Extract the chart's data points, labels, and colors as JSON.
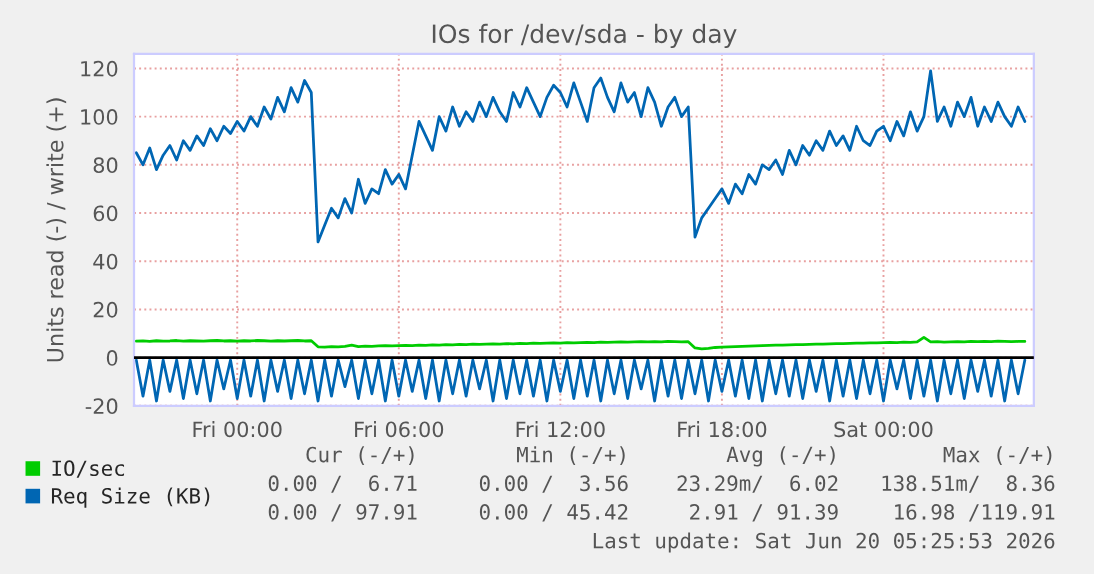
{
  "chart_data": {
    "type": "line",
    "title": "IOs for /dev/sda - by day",
    "ylabel": "Units read (-) / write (+)",
    "x": [
      "2026-06-18T20:15",
      "2026-06-18T20:30",
      "2026-06-18T20:45",
      "2026-06-18T21:00",
      "2026-06-18T21:15",
      "2026-06-18T21:30",
      "2026-06-18T21:45",
      "2026-06-18T22:00",
      "2026-06-18T22:15",
      "2026-06-18T22:30",
      "2026-06-18T22:45",
      "2026-06-18T23:00",
      "2026-06-18T23:15",
      "2026-06-18T23:30",
      "2026-06-18T23:45",
      "2026-06-19T00:00",
      "2026-06-19T00:15",
      "2026-06-19T00:30",
      "2026-06-19T00:45",
      "2026-06-19T01:00",
      "2026-06-19T01:15",
      "2026-06-19T01:30",
      "2026-06-19T01:45",
      "2026-06-19T02:00",
      "2026-06-19T02:15",
      "2026-06-19T02:30",
      "2026-06-19T02:45",
      "2026-06-19T03:00",
      "2026-06-19T03:15",
      "2026-06-19T03:30",
      "2026-06-19T03:45",
      "2026-06-19T04:00",
      "2026-06-19T04:15",
      "2026-06-19T04:30",
      "2026-06-19T04:45",
      "2026-06-19T05:00",
      "2026-06-19T05:15",
      "2026-06-19T05:30",
      "2026-06-19T05:45",
      "2026-06-19T06:00",
      "2026-06-19T06:15",
      "2026-06-19T06:30",
      "2026-06-19T06:45",
      "2026-06-19T07:00",
      "2026-06-19T07:15",
      "2026-06-19T07:30",
      "2026-06-19T07:45",
      "2026-06-19T08:00",
      "2026-06-19T08:15",
      "2026-06-19T08:30",
      "2026-06-19T08:45",
      "2026-06-19T09:00",
      "2026-06-19T09:15",
      "2026-06-19T09:30",
      "2026-06-19T09:45",
      "2026-06-19T10:00",
      "2026-06-19T10:15",
      "2026-06-19T10:30",
      "2026-06-19T10:45",
      "2026-06-19T11:00",
      "2026-06-19T11:15",
      "2026-06-19T11:30",
      "2026-06-19T11:45",
      "2026-06-19T12:00",
      "2026-06-19T12:15",
      "2026-06-19T12:30",
      "2026-06-19T12:45",
      "2026-06-19T13:00",
      "2026-06-19T13:15",
      "2026-06-19T13:30",
      "2026-06-19T13:45",
      "2026-06-19T14:00",
      "2026-06-19T14:15",
      "2026-06-19T14:30",
      "2026-06-19T14:45",
      "2026-06-19T15:00",
      "2026-06-19T15:15",
      "2026-06-19T15:30",
      "2026-06-19T15:45",
      "2026-06-19T16:00",
      "2026-06-19T16:15",
      "2026-06-19T16:30",
      "2026-06-19T16:45",
      "2026-06-19T17:00",
      "2026-06-19T17:15",
      "2026-06-19T17:30",
      "2026-06-19T17:45",
      "2026-06-19T18:00",
      "2026-06-19T18:15",
      "2026-06-19T18:30",
      "2026-06-19T18:45",
      "2026-06-19T19:00",
      "2026-06-19T19:15",
      "2026-06-19T19:30",
      "2026-06-19T19:45",
      "2026-06-19T20:00",
      "2026-06-19T20:15",
      "2026-06-19T20:30",
      "2026-06-19T20:45",
      "2026-06-19T21:00",
      "2026-06-19T21:15",
      "2026-06-19T21:30",
      "2026-06-19T21:45",
      "2026-06-19T22:00",
      "2026-06-19T22:15",
      "2026-06-19T22:30",
      "2026-06-19T22:45",
      "2026-06-19T23:00",
      "2026-06-19T23:15",
      "2026-06-19T23:30",
      "2026-06-19T23:45",
      "2026-06-20T00:00",
      "2026-06-20T00:15",
      "2026-06-20T00:30",
      "2026-06-20T00:45",
      "2026-06-20T01:00",
      "2026-06-20T01:15",
      "2026-06-20T01:30",
      "2026-06-20T01:45",
      "2026-06-20T02:00",
      "2026-06-20T02:15",
      "2026-06-20T02:30",
      "2026-06-20T02:45",
      "2026-06-20T03:00",
      "2026-06-20T03:15",
      "2026-06-20T03:30",
      "2026-06-20T03:45",
      "2026-06-20T04:00",
      "2026-06-20T04:15",
      "2026-06-20T04:30",
      "2026-06-20T04:45",
      "2026-06-20T05:00",
      "2026-06-20T05:15"
    ],
    "series": [
      {
        "name": "IO/sec",
        "color": "#00cc00",
        "values": [
          6.8,
          6.9,
          6.7,
          7.0,
          6.8,
          6.9,
          7.1,
          6.8,
          7.0,
          6.9,
          6.8,
          7.0,
          7.1,
          6.9,
          7.0,
          6.8,
          7.0,
          6.9,
          7.1,
          7.0,
          6.8,
          7.0,
          6.9,
          7.0,
          7.1,
          6.9,
          7.0,
          4.5,
          4.4,
          4.6,
          4.5,
          4.7,
          5.2,
          4.6,
          4.8,
          4.7,
          4.9,
          5.0,
          4.9,
          5.0,
          5.1,
          5.0,
          5.2,
          5.1,
          5.3,
          5.2,
          5.4,
          5.3,
          5.5,
          5.4,
          5.6,
          5.5,
          5.6,
          5.7,
          5.6,
          5.8,
          5.7,
          5.9,
          5.8,
          6.0,
          5.9,
          6.0,
          6.1,
          6.0,
          6.2,
          6.1,
          6.2,
          6.3,
          6.2,
          6.4,
          6.3,
          6.4,
          6.5,
          6.4,
          6.5,
          6.6,
          6.5,
          6.6,
          6.5,
          6.7,
          6.6,
          6.5,
          6.6,
          4.0,
          3.6,
          3.8,
          4.2,
          4.4,
          4.5,
          4.6,
          4.7,
          4.8,
          4.9,
          5.0,
          5.1,
          5.2,
          5.2,
          5.3,
          5.4,
          5.4,
          5.5,
          5.6,
          5.6,
          5.7,
          5.8,
          5.8,
          5.9,
          6.0,
          6.0,
          6.1,
          6.1,
          6.2,
          6.3,
          6.2,
          6.4,
          6.3,
          6.5,
          8.4,
          6.5,
          6.6,
          6.4,
          6.5,
          6.6,
          6.5,
          6.7,
          6.6,
          6.7,
          6.6,
          6.8,
          6.7,
          6.6,
          6.7,
          6.7
        ]
      },
      {
        "name": "Req Size (KB)",
        "color": "#0066b3",
        "values": [
          85,
          80,
          87,
          78,
          84,
          88,
          82,
          90,
          86,
          92,
          88,
          95,
          90,
          96,
          93,
          98,
          94,
          100,
          96,
          104,
          99,
          108,
          102,
          112,
          106,
          115,
          110,
          48,
          55,
          62,
          58,
          66,
          60,
          74,
          64,
          70,
          68,
          78,
          72,
          76,
          70,
          84,
          98,
          92,
          86,
          100,
          94,
          104,
          96,
          102,
          98,
          106,
          100,
          108,
          102,
          98,
          110,
          104,
          112,
          106,
          100,
          108,
          113,
          110,
          104,
          114,
          106,
          98,
          112,
          116,
          108,
          102,
          114,
          106,
          110,
          100,
          112,
          106,
          96,
          104,
          108,
          100,
          104,
          50,
          58,
          62,
          66,
          70,
          64,
          72,
          68,
          76,
          72,
          80,
          78,
          82,
          76,
          86,
          80,
          88,
          84,
          90,
          86,
          94,
          88,
          92,
          86,
          96,
          90,
          88,
          94,
          96,
          90,
          98,
          92,
          102,
          94,
          100,
          119,
          98,
          104,
          96,
          106,
          100,
          108,
          96,
          104,
          98,
          106,
          100,
          96,
          104,
          98
        ]
      },
      {
        "color": "#0066b3",
        "values": [
          -1,
          -16,
          -1,
          -18,
          -1,
          -14,
          -1,
          -17,
          -1,
          -15,
          -1,
          -18,
          -1,
          -13,
          -1,
          -17,
          -1,
          -16,
          -1,
          -18,
          -1,
          -14,
          -1,
          -17,
          -1,
          -15,
          -1,
          -18,
          -1,
          -16,
          -1,
          -12,
          -1,
          -17,
          -1,
          -15,
          -1,
          -18,
          -1,
          -16,
          -1,
          -14,
          -1,
          -17,
          -1,
          -18,
          -1,
          -15,
          -1,
          -16,
          -1,
          -13,
          -1,
          -18,
          -1,
          -17,
          -1,
          -15,
          -1,
          -16,
          -1,
          -18,
          -1,
          -14,
          -1,
          -17,
          -1,
          -16,
          -1,
          -18,
          -1,
          -15,
          -1,
          -17,
          -1,
          -13,
          -1,
          -18,
          -1,
          -16,
          -1,
          -17,
          -1,
          -15,
          -1,
          -18,
          -1,
          -14,
          -1,
          -16,
          -1,
          -17,
          -1,
          -18,
          -1,
          -15,
          -1,
          -16,
          -1,
          -17,
          -1,
          -14,
          -1,
          -18,
          -1,
          -16,
          -1,
          -17,
          -1,
          -15,
          -1,
          -18,
          -1,
          -13,
          -1,
          -17,
          -1,
          -16,
          -1,
          -18,
          -1,
          -15,
          -1,
          -17,
          -1,
          -14,
          -1,
          -16,
          -1,
          -18,
          -1,
          -15,
          -1
        ]
      }
    ],
    "xlim": [
      "2026-06-18T20:10",
      "2026-06-20T05:35"
    ],
    "xticks": [
      {
        "value": "2026-06-19T00:00",
        "label": "Fri 00:00"
      },
      {
        "value": "2026-06-19T06:00",
        "label": "Fri 06:00"
      },
      {
        "value": "2026-06-19T12:00",
        "label": "Fri 12:00"
      },
      {
        "value": "2026-06-19T18:00",
        "label": "Fri 18:00"
      },
      {
        "value": "2026-06-20T00:00",
        "label": "Sat 00:00"
      }
    ],
    "ylim": [
      -20,
      126
    ],
    "yticks": [
      -20,
      0,
      20,
      40,
      60,
      80,
      100,
      120
    ],
    "ref_lines": [
      {
        "axis": "y",
        "value": 0,
        "color": "#000000"
      }
    ],
    "grid": true,
    "legend": "bottom left",
    "marker": "none",
    "line_style": "solid",
    "annotations": [
      "Cur (-/+)",
      "Min (-/+)",
      "Avg (-/+)",
      "Max (-/+)",
      "0.00 /  6.71",
      "0.00 /  3.56",
      "23.29m/  6.02",
      "138.51m/  8.36",
      "0.00 / 97.91",
      "0.00 / 45.42",
      "2.91 / 91.39",
      "16.98 /119.91",
      "Last update: Sat Jun 20 05:25:53 2026"
    ]
  }
}
